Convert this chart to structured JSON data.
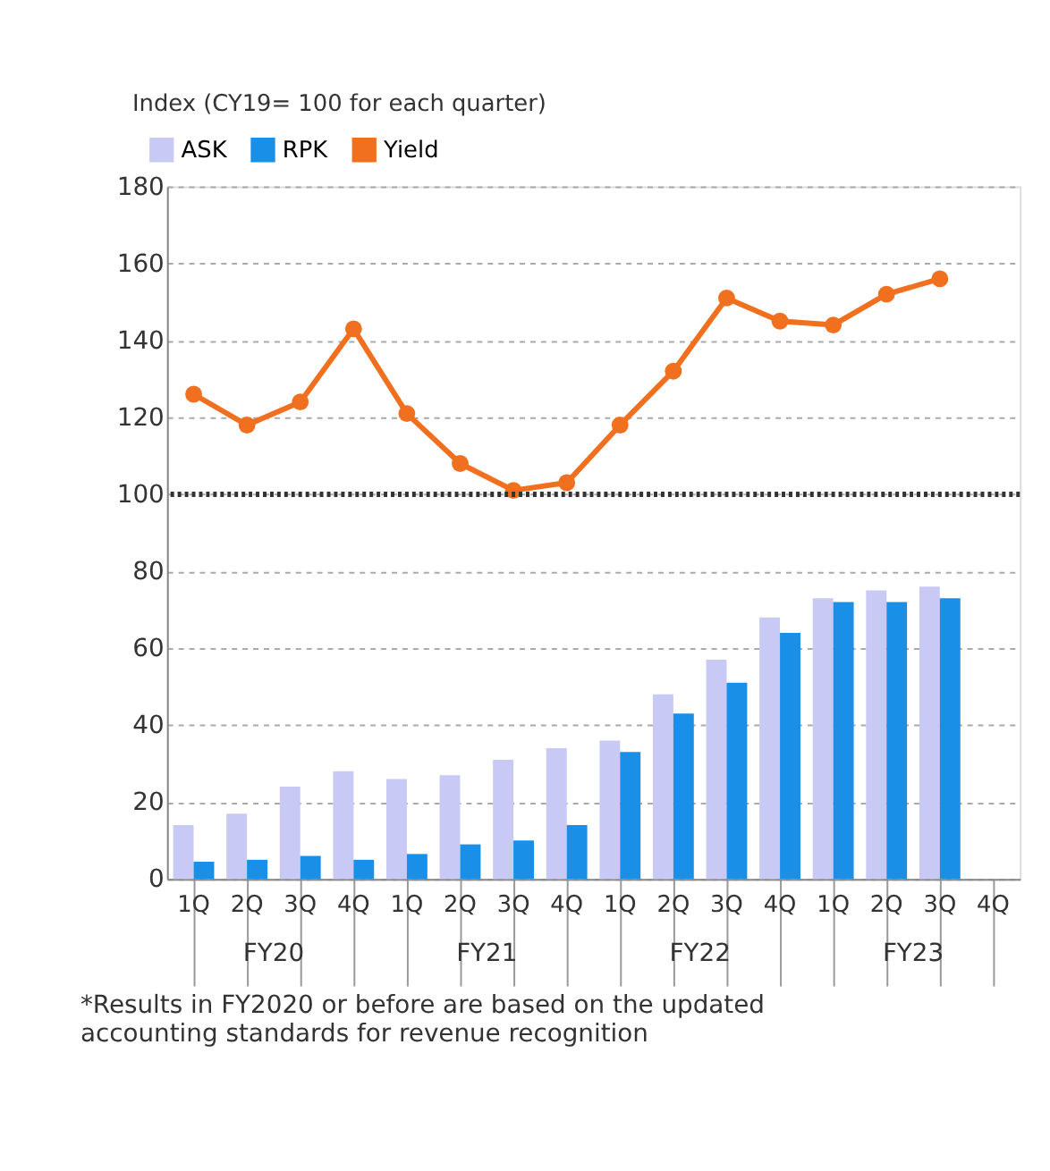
{
  "chart_data": {
    "type": "bar",
    "ylabel": "Index (CY19= 100 for each quarter)",
    "categories": [
      "1Q",
      "2Q",
      "3Q",
      "4Q",
      "1Q",
      "2Q",
      "3Q",
      "4Q",
      "1Q",
      "2Q",
      "3Q",
      "4Q",
      "1Q",
      "2Q",
      "3Q",
      "4Q"
    ],
    "series": [
      {
        "name": "ASK",
        "color": "#c9c9f5",
        "values": [
          14,
          17,
          24,
          28,
          26,
          27,
          31,
          34,
          36,
          48,
          57,
          68,
          73,
          75,
          76,
          null
        ]
      },
      {
        "name": "RPK",
        "color": "#1a8fe8",
        "values": [
          4.5,
          5,
          6,
          5,
          6.5,
          9,
          10,
          14,
          33,
          43,
          51,
          64,
          72,
          72,
          73,
          null
        ]
      },
      {
        "name": "Yield",
        "type": "line",
        "color": "#f07020",
        "values": [
          126,
          118,
          124,
          143,
          121,
          108,
          101,
          103,
          118,
          132,
          151,
          145,
          144,
          152,
          156,
          null
        ]
      }
    ],
    "ylim": [
      0,
      180
    ],
    "yticks": [
      0,
      20,
      40,
      60,
      80,
      100,
      120,
      140,
      160,
      180
    ],
    "grid": "y",
    "legend": "top left",
    "marker": "circle",
    "line_style": "solid",
    "ref_lines": [
      {
        "axis": "y",
        "value": 100,
        "line_style": "dotted",
        "color": "#333333"
      }
    ],
    "annotations": [
      "FY20",
      "FY21",
      "FY22",
      "FY23",
      "*Results in FY2020 or before are based on the updated accounting standards for revenue recognition"
    ]
  }
}
